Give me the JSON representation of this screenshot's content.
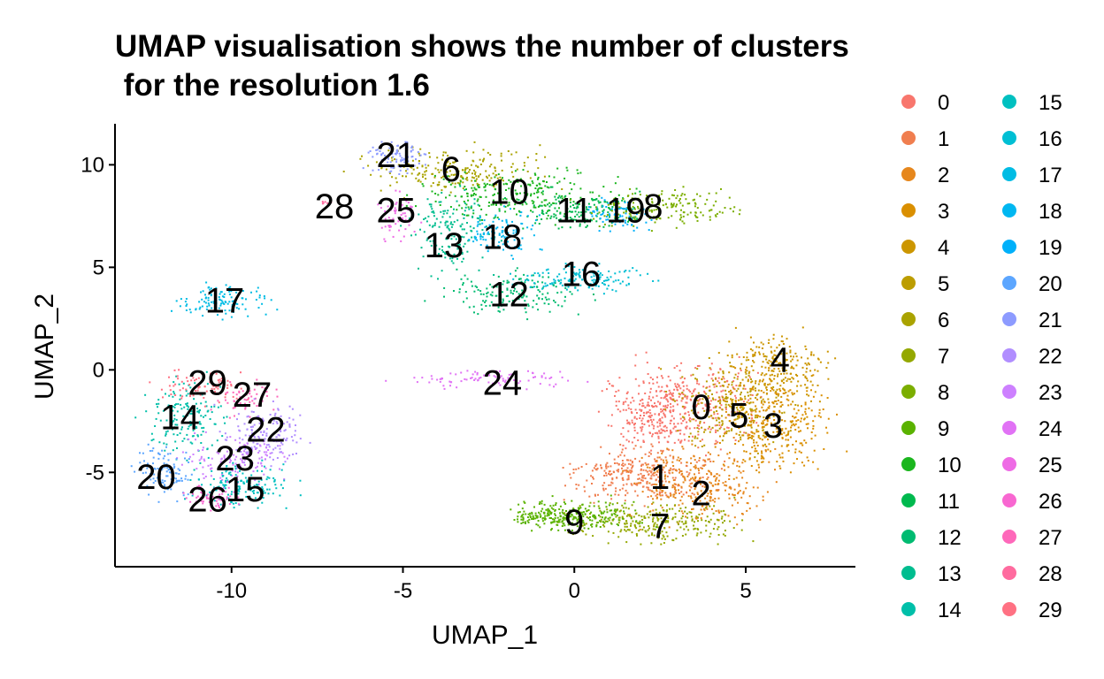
{
  "chart_data": {
    "type": "scatter",
    "title_line1": "UMAP visualisation shows the number of clusters",
    "title_line2": " for the resolution 1.6",
    "xlabel": "UMAP_1",
    "ylabel": "UMAP_2",
    "xlim": [
      -13.4,
      8.2
    ],
    "ylim": [
      -9.6,
      12.0
    ],
    "xticks": [
      -10,
      -5,
      0,
      5
    ],
    "xtick_labels": [
      "-10",
      "-5",
      "0",
      "5"
    ],
    "yticks": [
      -5,
      0,
      5,
      10
    ],
    "ytick_labels": [
      "-5",
      "0",
      "5",
      "10"
    ],
    "grid": false,
    "legend_position": "right",
    "series": [
      {
        "name": "0",
        "color": "#F8766D",
        "label_pos": [
          3.7,
          -1.8
        ]
      },
      {
        "name": "1",
        "color": "#F07E4F",
        "label_pos": [
          2.5,
          -5.2
        ]
      },
      {
        "name": "2",
        "color": "#E6871D",
        "label_pos": [
          3.7,
          -6.0
        ]
      },
      {
        "name": "3",
        "color": "#DA8F00",
        "label_pos": [
          5.8,
          -2.7
        ]
      },
      {
        "name": "4",
        "color": "#CC9600",
        "label_pos": [
          6.0,
          0.5
        ]
      },
      {
        "name": "5",
        "color": "#BC9D00",
        "label_pos": [
          4.8,
          -2.2
        ]
      },
      {
        "name": "6",
        "color": "#AAA300",
        "label_pos": [
          -3.6,
          9.8
        ]
      },
      {
        "name": "7",
        "color": "#94A800",
        "label_pos": [
          2.5,
          -7.6
        ]
      },
      {
        "name": "8",
        "color": "#7BAE00",
        "label_pos": [
          2.3,
          8.0
        ]
      },
      {
        "name": "9",
        "color": "#5AB200",
        "label_pos": [
          0.0,
          -7.4
        ]
      },
      {
        "name": "10",
        "color": "#1BB61E",
        "label_pos": [
          -1.9,
          8.7
        ]
      },
      {
        "name": "11",
        "color": "#00B94E",
        "label_pos": [
          0.0,
          7.8
        ]
      },
      {
        "name": "12",
        "color": "#00BB71",
        "label_pos": [
          -1.9,
          3.7
        ]
      },
      {
        "name": "13",
        "color": "#00BD8F",
        "label_pos": [
          -3.8,
          6.1
        ]
      },
      {
        "name": "14",
        "color": "#00BFA9",
        "label_pos": [
          -11.5,
          -2.3
        ]
      },
      {
        "name": "15",
        "color": "#00C0C0",
        "label_pos": [
          -9.6,
          -5.8
        ]
      },
      {
        "name": "16",
        "color": "#00BFD4",
        "label_pos": [
          0.2,
          4.7
        ]
      },
      {
        "name": "17",
        "color": "#00BCE4",
        "label_pos": [
          -10.2,
          3.4
        ]
      },
      {
        "name": "18",
        "color": "#00B7F1",
        "label_pos": [
          -2.1,
          6.5
        ]
      },
      {
        "name": "19",
        "color": "#00B0FA",
        "label_pos": [
          1.5,
          7.8
        ]
      },
      {
        "name": "20",
        "color": "#5CA6FF",
        "label_pos": [
          -12.2,
          -5.2
        ]
      },
      {
        "name": "21",
        "color": "#8D9BFF",
        "label_pos": [
          -5.2,
          10.5
        ]
      },
      {
        "name": "22",
        "color": "#B18EFF",
        "label_pos": [
          -9.0,
          -2.9
        ]
      },
      {
        "name": "23",
        "color": "#CD80FF",
        "label_pos": [
          -9.9,
          -4.3
        ]
      },
      {
        "name": "24",
        "color": "#E172F5",
        "label_pos": [
          -2.1,
          -0.6
        ]
      },
      {
        "name": "25",
        "color": "#EE6BE5",
        "label_pos": [
          -5.2,
          7.8
        ]
      },
      {
        "name": "26",
        "color": "#F867D1",
        "label_pos": [
          -10.7,
          -6.3
        ]
      },
      {
        "name": "27",
        "color": "#FE68BA",
        "label_pos": [
          -9.4,
          -1.2
        ]
      },
      {
        "name": "28",
        "color": "#FF6B9F",
        "label_pos": [
          -7.0,
          8.0
        ]
      },
      {
        "name": "29",
        "color": "#FF7183",
        "label_pos": [
          -10.7,
          -0.6
        ]
      }
    ]
  }
}
